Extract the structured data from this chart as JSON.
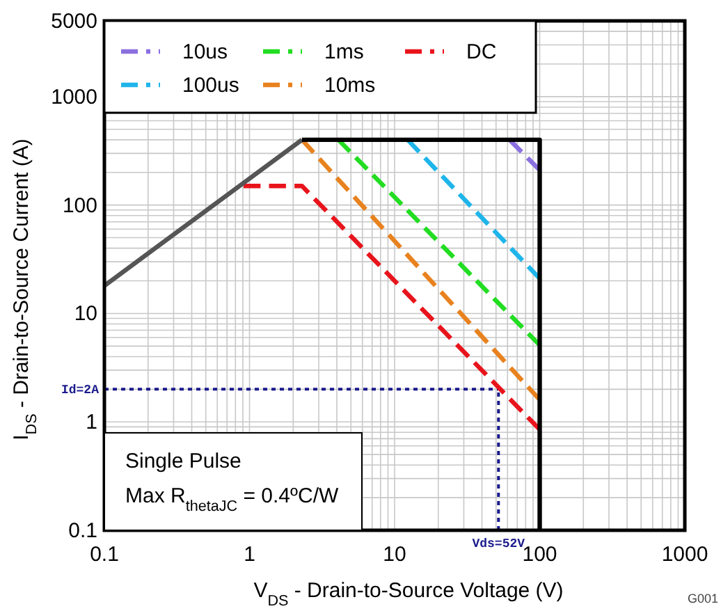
{
  "chart_data": {
    "type": "line",
    "xlabel": "V$_{DS}$ - Drain-to-Source Voltage (V)",
    "ylabel": "I$_{DS}$ - Drain-to-Source Current (A)",
    "log": "xy",
    "xlim": [
      0.1,
      1000
    ],
    "ylim": [
      0.1,
      5000
    ],
    "xticks": [
      0.1,
      1,
      10,
      100,
      1000
    ],
    "yticks": [
      0.1,
      1,
      10,
      100,
      1000,
      5000
    ],
    "grid": true,
    "legend": "top left",
    "line_style": "dashed",
    "series": [
      {
        "name": "10us",
        "color": "#8a6fdf",
        "x": [
          62,
          100
        ],
        "values": [
          400,
          210
        ]
      },
      {
        "name": "100us",
        "color": "#1fb5ea",
        "x": [
          12.3,
          100
        ],
        "values": [
          400,
          21
        ]
      },
      {
        "name": "1ms",
        "color": "#22dd22",
        "x": [
          4.1,
          100
        ],
        "values": [
          400,
          5.1
        ]
      },
      {
        "name": "10ms",
        "color": "#e8821e",
        "x": [
          2.3,
          100
        ],
        "values": [
          400,
          1.6
        ]
      },
      {
        "name": "DC",
        "color": "#e8141c",
        "x": [
          0.91,
          2.3,
          100
        ],
        "values": [
          150,
          150,
          0.85
        ]
      },
      {
        "color": "#555555",
        "line_style": "solid",
        "x": [
          0.1,
          2.3
        ],
        "values": [
          18,
          400
        ]
      },
      {
        "color": "#000000",
        "line_style": "solid",
        "x": [
          2.3,
          100,
          100
        ],
        "values": [
          400,
          400,
          0.1
        ]
      }
    ],
    "ref_lines": [
      {
        "axis": "y",
        "value": 2,
        "label": "Id=2A",
        "color": "#1a1a8c",
        "line_style": "dotted"
      },
      {
        "axis": "x",
        "value": 52,
        "label": "Vds=52V",
        "color": "#1a1a8c",
        "line_style": "dotted"
      }
    ],
    "annotations": [
      "Single Pulse",
      "Max R$_{thetaJC}$ = 0.4ºC/W",
      "G001"
    ]
  }
}
